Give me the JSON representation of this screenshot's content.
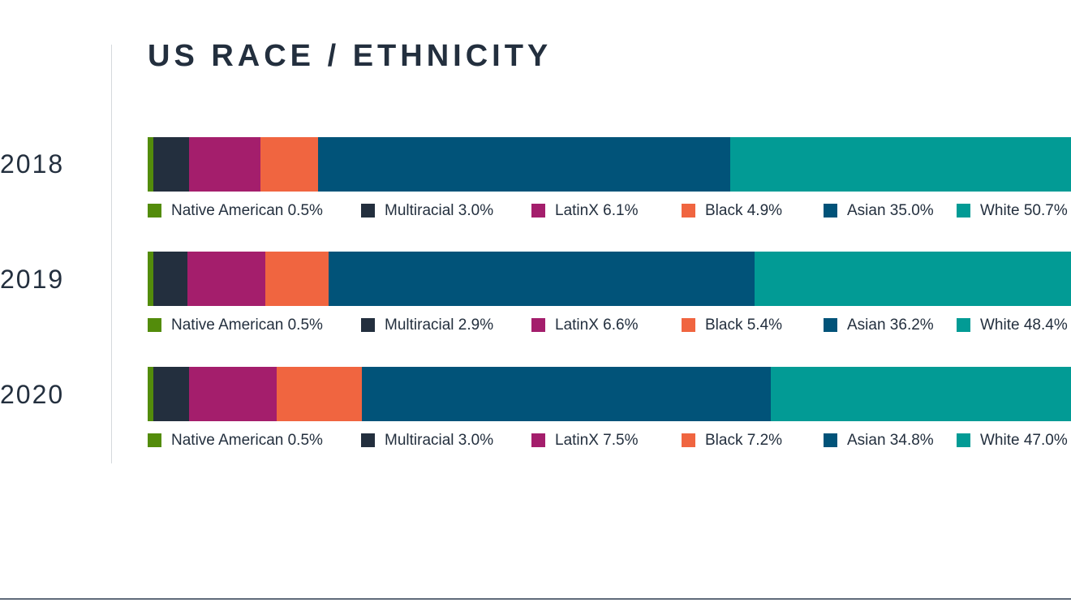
{
  "title": "US RACE / ETHNICITY",
  "colors": {
    "Native American": "#538c0b",
    "Multiracial": "#232f3e",
    "LatinX": "#a41e6c",
    "Black": "#f06540",
    "Asian": "#015379",
    "White": "#029b95"
  },
  "chart_data": {
    "type": "bar",
    "orientation": "horizontal",
    "stacked": true,
    "title": "US RACE / ETHNICITY",
    "categories": [
      "2018",
      "2019",
      "2020"
    ],
    "legend_placement": "below each bar",
    "grid": false,
    "series": [
      {
        "name": "Native American",
        "values": [
          0.5,
          0.5,
          0.5
        ]
      },
      {
        "name": "Multiracial",
        "values": [
          3.0,
          2.9,
          3.0
        ]
      },
      {
        "name": "LatinX",
        "values": [
          6.1,
          6.6,
          7.5
        ]
      },
      {
        "name": "Black",
        "values": [
          4.9,
          5.4,
          7.2
        ]
      },
      {
        "name": "Asian",
        "values": [
          35.0,
          36.2,
          34.8
        ]
      },
      {
        "name": "White",
        "values": [
          50.7,
          48.4,
          47.0
        ]
      }
    ],
    "labels": [
      [
        "Native American 0.5%",
        "Multiracial 3.0%",
        "LatinX 6.1%",
        "Black 4.9%",
        "Asian 35.0%",
        "White 50.7%"
      ],
      [
        "Native American 0.5%",
        "Multiracial 2.9%",
        "LatinX 6.6%",
        "Black 5.4%",
        "Asian 36.2%",
        "White 48.4%"
      ],
      [
        "Native American 0.5%",
        "Multiracial 3.0%",
        "LatinX 7.5%",
        "Black 7.2%",
        "Asian 34.8%",
        "White 47.0%"
      ]
    ]
  }
}
